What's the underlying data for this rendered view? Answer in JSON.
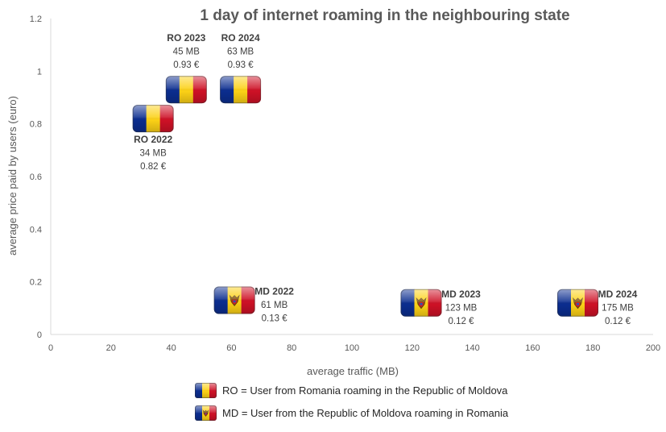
{
  "chart_data": {
    "type": "scatter",
    "title": "1 day of internet roaming in the neighbouring state",
    "xlabel": "average traffic (MB)",
    "ylabel": "average price paid by users (euro)",
    "xlim": [
      0,
      200
    ],
    "ylim": [
      0,
      1.2
    ],
    "x_ticks": [
      0,
      20,
      40,
      60,
      80,
      100,
      120,
      140,
      160,
      180,
      200
    ],
    "y_ticks": [
      0,
      0.2,
      0.4,
      0.6,
      0.8,
      1,
      1.2
    ],
    "x_tick_labels": [
      "0",
      "20",
      "40",
      "60",
      "80",
      "100",
      "120",
      "140",
      "160",
      "180",
      "200"
    ],
    "y_tick_labels": [
      "0",
      "0.2",
      "0.4",
      "0.6",
      "0.8",
      "1",
      "1.2"
    ],
    "grid": false,
    "legend_placement": "bottom",
    "points": [
      {
        "group": "RO",
        "label": "RO 2022",
        "traffic_label": "34 MB",
        "price_label": "0.82 €",
        "x": 34,
        "y": 0.82,
        "label_side": "below"
      },
      {
        "group": "RO",
        "label": "RO 2023",
        "traffic_label": "45 MB",
        "price_label": "0.93 €",
        "x": 45,
        "y": 0.93,
        "label_side": "above"
      },
      {
        "group": "RO",
        "label": "RO 2024",
        "traffic_label": "63 MB",
        "price_label": "0.93 €",
        "x": 63,
        "y": 0.93,
        "label_side": "above"
      },
      {
        "group": "MD",
        "label": "MD 2022",
        "traffic_label": "61 MB",
        "price_label": "0.13 €",
        "x": 61,
        "y": 0.13,
        "label_side": "right"
      },
      {
        "group": "MD",
        "label": "MD 2023",
        "traffic_label": "123 MB",
        "price_label": "0.12 €",
        "x": 123,
        "y": 0.12,
        "label_side": "right"
      },
      {
        "group": "MD",
        "label": "MD 2024",
        "traffic_label": "175 MB",
        "price_label": "0.12 €",
        "x": 175,
        "y": 0.12,
        "label_side": "right"
      }
    ],
    "legend": [
      {
        "group": "RO",
        "text": "RO = User from Romania roaming in the Republic of Moldova"
      },
      {
        "group": "MD",
        "text": "MD = User from the Republic of Moldova roaming in Romania"
      }
    ]
  },
  "colors": {
    "flag_blue": "#0b2d8f",
    "flag_yellow": "#fcd116",
    "flag_red": "#ce1126",
    "axis": "#d9d9d9",
    "text": "#404040"
  },
  "icons": {
    "RO": "romania-flag-icon",
    "MD": "moldova-flag-icon"
  }
}
